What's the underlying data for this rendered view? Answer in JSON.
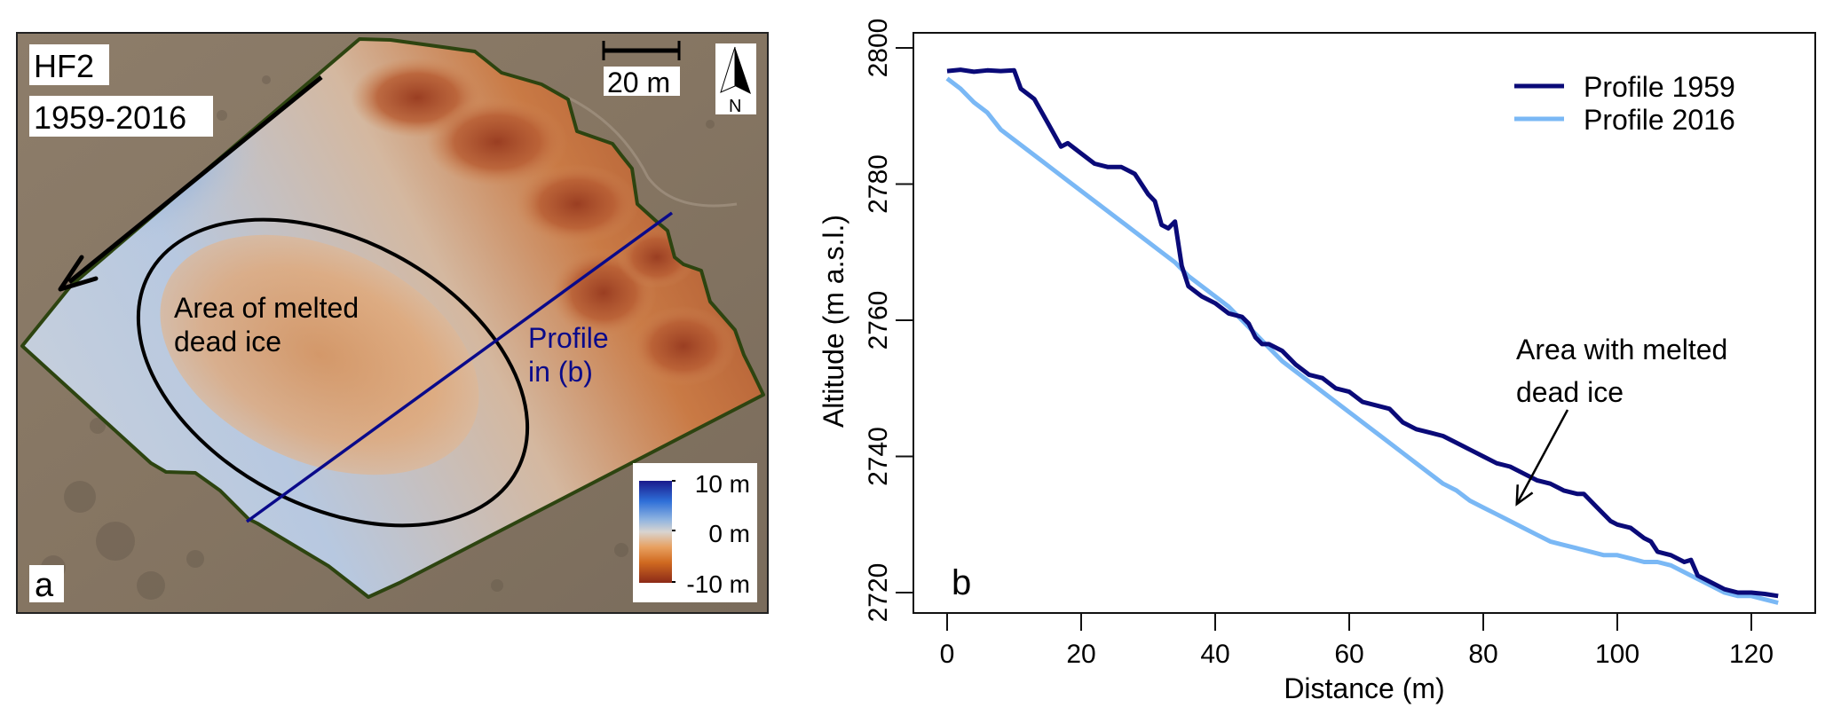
{
  "panel_a": {
    "site_label": "HF2",
    "period_label": "1959-2016",
    "scale_bar_label": "20 m",
    "north_label": "N",
    "ellipse_label_line1": "Area of melted",
    "ellipse_label_line2": "dead ice",
    "profile_label_line1": "Profile",
    "profile_label_line2": "in (b)",
    "panel_letter": "a",
    "colorbar": {
      "ticks": [
        "10 m",
        "0 m",
        "-10 m"
      ],
      "range": [
        -10,
        10
      ],
      "colors": [
        "#1a1a8c",
        "#2e6fd8",
        "#8fb4e0",
        "#d8d4d0",
        "#e8a060",
        "#d06a20",
        "#8c2a18"
      ]
    },
    "colors": {
      "outline": "#2d4410",
      "profile_line": "#0a0a8a",
      "ground": "#8a7a68"
    }
  },
  "chart_data": {
    "type": "line",
    "panel_letter": "b",
    "xlabel": "Distance (m)",
    "ylabel": "Altitude (m a.s.l.)",
    "xlim": [
      -5,
      130
    ],
    "ylim": [
      2717.5,
      2802.5
    ],
    "xticks": [
      0,
      20,
      40,
      60,
      80,
      100,
      120
    ],
    "yticks": [
      2720,
      2740,
      2760,
      2780,
      2800
    ],
    "grid": false,
    "legend_position": "top-right",
    "annotation": {
      "text_line1": "Area with melted",
      "text_line2": "dead ice",
      "arrow_to": [
        85,
        2733
      ]
    },
    "series": [
      {
        "name": "Profile 1959",
        "color": "#0a0a78",
        "x": [
          0,
          2,
          4,
          6,
          8,
          10,
          11,
          13,
          15,
          17,
          18,
          20,
          22,
          24,
          26,
          28,
          30,
          31,
          32,
          33,
          34,
          35,
          36,
          38,
          40,
          42,
          44,
          45,
          46,
          47,
          48,
          50,
          52,
          54,
          56,
          58,
          60,
          62,
          64,
          66,
          68,
          70,
          72,
          74,
          76,
          78,
          80,
          82,
          84,
          86,
          88,
          90,
          92,
          94,
          95,
          97,
          99,
          100,
          102,
          104,
          105,
          106,
          108,
          110,
          111,
          112,
          114,
          116,
          118,
          120,
          122,
          124
        ],
        "y": [
          2796.6,
          2796.8,
          2796.5,
          2796.7,
          2796.6,
          2796.7,
          2794,
          2792.5,
          2789,
          2785.5,
          2786,
          2784.5,
          2783,
          2782.5,
          2782.5,
          2781.5,
          2778.5,
          2777.5,
          2774,
          2773.5,
          2774.5,
          2768,
          2765,
          2763.5,
          2762.5,
          2761,
          2760.5,
          2759.5,
          2757.5,
          2756.5,
          2756.5,
          2755.5,
          2753.5,
          2752,
          2751.5,
          2750,
          2749.5,
          2748,
          2747.5,
          2747,
          2745,
          2744,
          2743.5,
          2743,
          2742,
          2741,
          2740,
          2739,
          2738.5,
          2737.5,
          2736.5,
          2736,
          2735,
          2734.5,
          2734.5,
          2732.5,
          2730.5,
          2730,
          2729.5,
          2728,
          2727.5,
          2726,
          2725.5,
          2724.5,
          2724.8,
          2722.5,
          2721.5,
          2720.5,
          2720,
          2720,
          2719.8,
          2719.5
        ]
      },
      {
        "name": "Profile 2016",
        "color": "#7ab8f5",
        "x": [
          0,
          2,
          4,
          6,
          8,
          10,
          12,
          14,
          16,
          18,
          20,
          22,
          24,
          26,
          28,
          30,
          32,
          34,
          36,
          38,
          40,
          42,
          44,
          46,
          48,
          50,
          52,
          54,
          56,
          58,
          60,
          62,
          64,
          66,
          68,
          70,
          72,
          74,
          76,
          78,
          80,
          82,
          84,
          86,
          88,
          90,
          92,
          94,
          96,
          98,
          100,
          102,
          104,
          106,
          108,
          110,
          112,
          114,
          116,
          118,
          120,
          122,
          124
        ],
        "y": [
          2795.5,
          2794,
          2792,
          2790.5,
          2788,
          2786.5,
          2785,
          2783.5,
          2782,
          2780.5,
          2779,
          2777.5,
          2776,
          2774.5,
          2773,
          2771.5,
          2770,
          2768.5,
          2766.5,
          2765,
          2763.5,
          2762,
          2760,
          2758,
          2756,
          2754,
          2752.5,
          2751,
          2749.5,
          2748,
          2746.5,
          2745,
          2743.5,
          2742,
          2740.5,
          2739,
          2737.5,
          2736,
          2735,
          2733.5,
          2732.5,
          2731.5,
          2730.5,
          2729.5,
          2728.5,
          2727.5,
          2727,
          2726.5,
          2726,
          2725.5,
          2725.5,
          2725,
          2724.5,
          2724.5,
          2724,
          2723,
          2722,
          2721,
          2720,
          2719.5,
          2719.5,
          2719,
          2718.5
        ]
      }
    ]
  }
}
